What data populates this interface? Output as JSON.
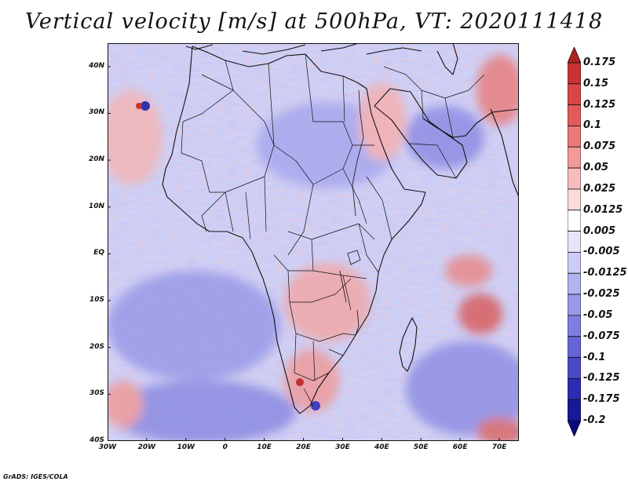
{
  "title": "Vertical velocity [m/s] at 500hPa, VT: 2020111418",
  "footer": "GrADS: IGES/COLA",
  "map": {
    "region": "Africa",
    "lon_range": [
      -30,
      75
    ],
    "lat_range": [
      -40,
      45
    ],
    "lat_labels": [
      "40N",
      "30N",
      "20N",
      "10N",
      "EQ",
      "10S",
      "20S",
      "30S",
      "40S"
    ],
    "lon_labels": [
      "30W",
      "20W",
      "10W",
      "0",
      "10E",
      "20E",
      "30E",
      "40E",
      "50E",
      "60E",
      "70E"
    ]
  },
  "colorbar": {
    "labels": [
      "0.175",
      "0.15",
      "0.125",
      "0.1",
      "0.075",
      "0.05",
      "0.025",
      "0.0125",
      "0.005",
      "-0.005",
      "-0.0125",
      "-0.025",
      "-0.05",
      "-0.075",
      "-0.1",
      "-0.125",
      "-0.175",
      "-0.2"
    ],
    "colors": [
      "#b22222",
      "#c83232",
      "#d84646",
      "#e45a5a",
      "#ec7878",
      "#f29a9a",
      "#f7bdbd",
      "#fbdcdc",
      "#ffffff",
      "#e6e6fb",
      "#ccccf6",
      "#b2b2f0",
      "#9898ea",
      "#7e7ee2",
      "#6464d8",
      "#4a4ac8",
      "#2c2cb4",
      "#18189a",
      "#0a0a80"
    ]
  }
}
